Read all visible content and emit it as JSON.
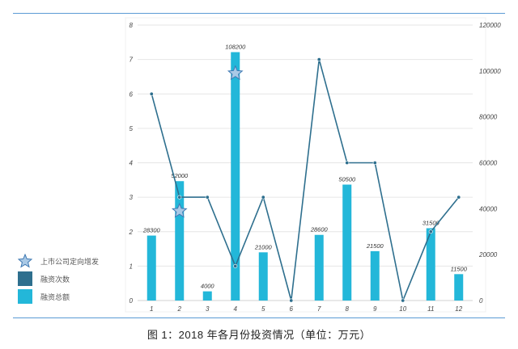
{
  "caption": "图 1：2018 年各月份投资情况（单位：万元）",
  "colors": {
    "bar": "#23b7d9",
    "line": "#2e6f8e",
    "star_fill": "#a9c9e6",
    "star_stroke": "#3f79b3",
    "grid": "#e6e6e6",
    "rule": "#5b9bd5"
  },
  "chart_data": {
    "type": "bar",
    "categories": [
      "1",
      "2",
      "3",
      "4",
      "5",
      "6",
      "7",
      "8",
      "9",
      "10",
      "11",
      "12"
    ],
    "series": [
      {
        "name": "融资总额",
        "type": "bar",
        "axis": "right",
        "values": [
          28300,
          52000,
          4000,
          108200,
          21000,
          0,
          28600,
          50500,
          21500,
          0,
          31500,
          11500
        ],
        "data_labels": [
          "28300",
          "52000",
          "4000",
          "108200",
          "21000",
          "",
          "28600",
          "50500",
          "21500",
          "",
          "31500",
          "11500"
        ]
      },
      {
        "name": "融资次数",
        "type": "line",
        "axis": "left",
        "values": [
          6,
          3,
          3,
          1,
          3,
          0,
          7,
          4,
          4,
          0,
          2,
          3
        ]
      },
      {
        "name": "上市公司定向增发",
        "type": "marker",
        "axis": "left",
        "points": [
          {
            "x": "2",
            "y": 2.6
          },
          {
            "x": "4",
            "y": 6.6
          }
        ]
      }
    ],
    "y_left": {
      "min": 0,
      "max": 8,
      "ticks": [
        "0",
        "1",
        "2",
        "3",
        "4",
        "5",
        "6",
        "7",
        "8"
      ]
    },
    "y_right": {
      "min": 0,
      "max": 120000,
      "ticks": [
        "0",
        "20000",
        "40000",
        "60000",
        "80000",
        "100000",
        "120000"
      ]
    },
    "grid": true,
    "legend_position": "left"
  },
  "legend": [
    {
      "label": "上市公司定向增发",
      "icon": "star-icon"
    },
    {
      "label": "融资次数",
      "icon": "square-dark"
    },
    {
      "label": "融资总额",
      "icon": "square-cyan"
    }
  ]
}
